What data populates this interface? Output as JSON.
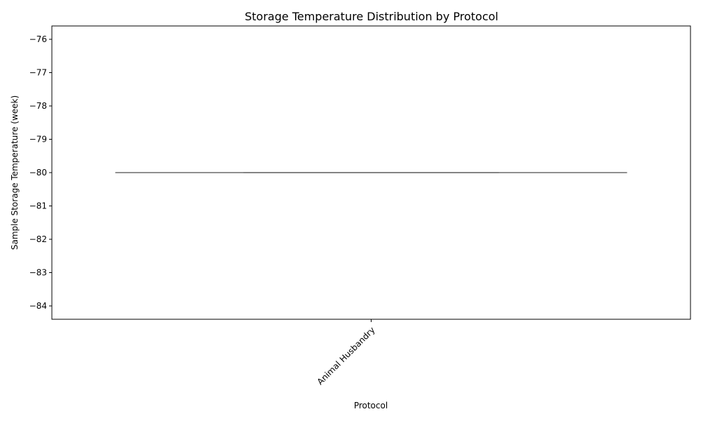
{
  "chart_data": {
    "type": "box",
    "title": "Storage Temperature Distribution by Protocol",
    "xlabel": "Protocol",
    "ylabel": "Sample Storage Temperature (week)",
    "categories": [
      "Animal Husbandry"
    ],
    "boxes": [
      {
        "category": "Animal Husbandry",
        "min": -80,
        "q1": -80,
        "median": -80,
        "q3": -80,
        "max": -80
      }
    ],
    "ylim": [
      -84.4,
      -75.6
    ],
    "yticks": [
      -84,
      -83,
      -82,
      -81,
      -80,
      -79,
      -78,
      -77,
      -76
    ],
    "ytick_labels": [
      "−84",
      "−83",
      "−82",
      "−81",
      "−80",
      "−79",
      "−78",
      "−77",
      "−76"
    ],
    "grid": false,
    "colors": {
      "box": "#808080",
      "axis": "#000000"
    }
  }
}
